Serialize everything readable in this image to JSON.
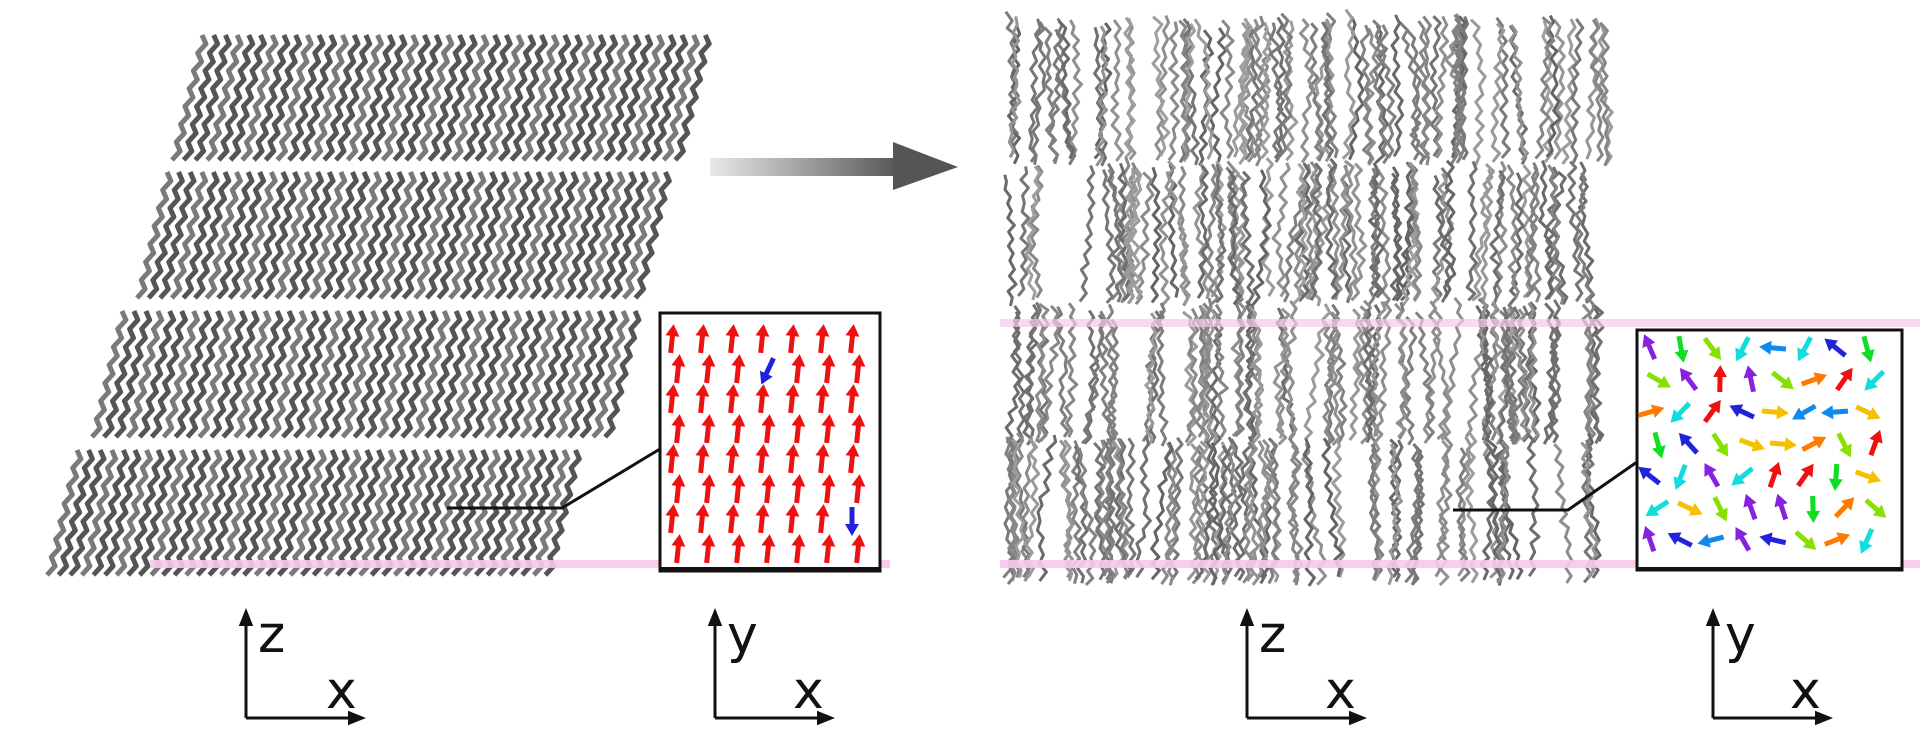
{
  "panels": {
    "ordered": {
      "axes_label": {
        "vertical": "z",
        "horizontal": "x"
      },
      "inset_axes_label": {
        "vertical": "y",
        "horizontal": "x"
      }
    },
    "disordered": {
      "axes_label": {
        "vertical": "z",
        "horizontal": "x"
      },
      "inset_axes_label": {
        "vertical": "y",
        "horizontal": "x"
      }
    }
  },
  "colors": {
    "chain": "#555555",
    "chain_light": "#8c8c8c",
    "arrow_gradient_start": "#e6e6e6",
    "arrow_gradient_end": "#555555",
    "highlight_band": "#f7c9ea",
    "ordered_arrow": "#ee1111",
    "flipped_arrow": "#2222dd"
  },
  "ordered_inset": {
    "dominant_direction": "up",
    "flipped_count": 2
  },
  "disordered_inset": {
    "dominant_direction": "random"
  },
  "icons": [
    "transition-arrow-icon",
    "axis-icon"
  ]
}
